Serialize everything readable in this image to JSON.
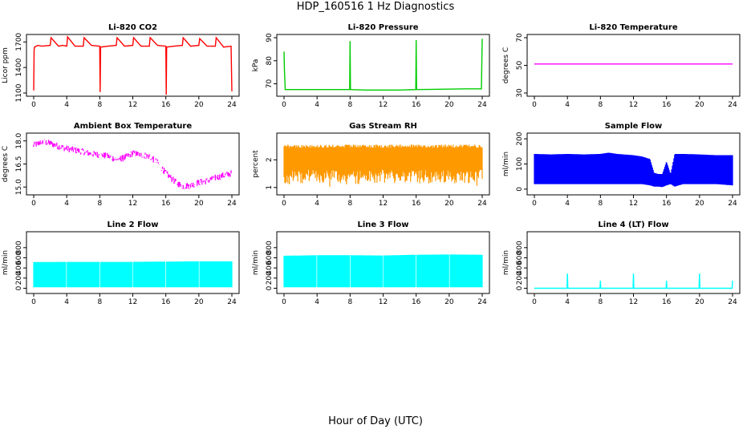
{
  "figure": {
    "title": "HDP_160516  1 Hz Diagnostics",
    "xlabel": "Hour of Day (UTC)"
  },
  "chart_data": [
    {
      "type": "line",
      "title": "Li-820 CO2",
      "ylabel": "Licor ppm",
      "color": "#ff0000",
      "xlim": [
        0,
        24
      ],
      "ylim": [
        1100,
        1750
      ],
      "xticks": [
        0,
        4,
        8,
        12,
        16,
        20,
        24
      ],
      "yticks": [
        1100,
        1400,
        1700
      ],
      "x": [
        0,
        0.05,
        0.1,
        0.5,
        1,
        2,
        2.1,
        3,
        3.5,
        4,
        4.1,
        5,
        6,
        6.1,
        7,
        8,
        8.05,
        8.1,
        9,
        10,
        10.1,
        11,
        12,
        12.1,
        13,
        14,
        14.1,
        15,
        16,
        16.05,
        16.1,
        17,
        18,
        18.1,
        19,
        20,
        20.1,
        21,
        22,
        22.1,
        23,
        23.9,
        24
      ],
      "y": [
        1130,
        1600,
        1640,
        1660,
        1650,
        1660,
        1750,
        1650,
        1660,
        1650,
        1760,
        1650,
        1650,
        1750,
        1660,
        1650,
        1110,
        1640,
        1650,
        1660,
        1750,
        1650,
        1660,
        1750,
        1650,
        1650,
        1750,
        1660,
        1650,
        1080,
        1640,
        1650,
        1660,
        1750,
        1650,
        1660,
        1740,
        1650,
        1650,
        1750,
        1640,
        1650,
        1120
      ]
    },
    {
      "type": "line",
      "title": "Li-820 Pressure",
      "ylabel": "kPa",
      "color": "#00cc00",
      "xlim": [
        0,
        24
      ],
      "ylim": [
        66,
        90
      ],
      "xticks": [
        0,
        4,
        8,
        12,
        16,
        20,
        24
      ],
      "yticks": [
        70,
        80,
        90
      ],
      "x": [
        0,
        0.05,
        0.15,
        1,
        4,
        7.95,
        8,
        8.05,
        10,
        14,
        15.95,
        16,
        16.05,
        18,
        22,
        23.9,
        24
      ],
      "y": [
        84,
        76,
        67.5,
        67.5,
        67.5,
        67.5,
        88.5,
        67.5,
        67.3,
        67.3,
        67.5,
        89,
        67.5,
        67.6,
        67.8,
        67.8,
        89.5
      ]
    },
    {
      "type": "line",
      "title": "Li-820 Temperature",
      "ylabel": "degrees C",
      "color": "#ff00ff",
      "xlim": [
        0,
        24
      ],
      "ylim": [
        30,
        70
      ],
      "xticks": [
        0,
        4,
        8,
        12,
        16,
        20,
        24
      ],
      "yticks": [
        30,
        50,
        70
      ],
      "x": [
        0,
        24
      ],
      "y": [
        51,
        51
      ]
    },
    {
      "type": "line",
      "title": "Ambient Box Temperature",
      "ylabel": "degrees C",
      "color": "#ff00ff",
      "xlim": [
        0,
        24
      ],
      "ylim": [
        14.7,
        18.3
      ],
      "xticks": [
        0,
        4,
        8,
        12,
        16,
        20,
        24
      ],
      "yticks": [
        15.0,
        16.5,
        18.0
      ],
      "x": [
        0,
        1,
        2,
        3,
        4,
        5,
        6,
        7,
        8,
        9,
        10,
        11,
        12,
        13,
        14,
        15,
        16,
        17,
        18,
        19,
        20,
        21,
        22,
        23,
        24
      ],
      "y": [
        17.7,
        17.95,
        17.85,
        17.65,
        17.5,
        17.4,
        17.3,
        17.15,
        17.1,
        17.0,
        16.8,
        16.9,
        17.2,
        17.1,
        17.0,
        16.6,
        15.9,
        15.4,
        15.05,
        15.1,
        15.3,
        15.4,
        15.6,
        15.75,
        15.9
      ],
      "band": 0.22
    },
    {
      "type": "line",
      "title": "Gas Stream RH",
      "ylabel": "percent",
      "color": "#ff9900",
      "xlim": [
        0,
        24
      ],
      "ylim": [
        0.85,
        2.85
      ],
      "xticks": [
        0,
        4,
        8,
        12,
        16,
        20,
        24
      ],
      "yticks": [
        1.0,
        2.0
      ],
      "x": [
        0,
        24
      ],
      "y_low": [
        1.15,
        1.15
      ],
      "y_high": [
        2.55,
        2.55
      ],
      "band": 1.4
    },
    {
      "type": "line",
      "title": "Sample Flow",
      "ylabel": "ml/min",
      "color": "#0000ff",
      "xlim": [
        0,
        24
      ],
      "ylim": [
        -10,
        210
      ],
      "xticks": [
        0,
        4,
        8,
        12,
        16,
        20,
        24
      ],
      "yticks": [
        0,
        100,
        200
      ],
      "x": [
        0,
        2,
        4,
        6,
        8,
        9,
        10,
        12,
        13,
        14,
        14.5,
        15,
        15.5,
        16,
        16.5,
        17,
        18,
        20,
        22,
        24
      ],
      "y_low": [
        20,
        20,
        20,
        20,
        20,
        20,
        20,
        20,
        20,
        15,
        10,
        10,
        8,
        15,
        20,
        10,
        20,
        20,
        20,
        15
      ],
      "y_high": [
        140,
        138,
        140,
        138,
        140,
        145,
        140,
        135,
        130,
        120,
        65,
        60,
        60,
        110,
        60,
        140,
        140,
        138,
        135,
        135
      ]
    },
    {
      "type": "line",
      "title": "Line 2 Flow",
      "ylabel": "ml/min",
      "color": "#00ffff",
      "xlim": [
        0,
        24
      ],
      "ylim": [
        -40,
        1050
      ],
      "xticks": [
        0,
        4,
        8,
        12,
        16,
        20,
        24
      ],
      "yticks": [
        0,
        200,
        400,
        600,
        800
      ],
      "x": [
        0,
        4,
        8,
        12,
        16,
        20,
        24
      ],
      "y_low": [
        20,
        20,
        20,
        20,
        20,
        20,
        20
      ],
      "y_high": [
        515,
        520,
        520,
        520,
        525,
        530,
        530
      ],
      "gaps": [
        4,
        8,
        12,
        16,
        20
      ]
    },
    {
      "type": "line",
      "title": "Line 3 Flow",
      "ylabel": "ml/min",
      "color": "#00ffff",
      "xlim": [
        0,
        24
      ],
      "ylim": [
        -40,
        1050
      ],
      "xticks": [
        0,
        4,
        8,
        12,
        16,
        20,
        24
      ],
      "yticks": [
        0,
        200,
        400,
        600,
        800
      ],
      "x": [
        0,
        4,
        8,
        12,
        16,
        20,
        24
      ],
      "y_low": [
        20,
        20,
        20,
        20,
        20,
        20,
        20
      ],
      "y_high": [
        640,
        650,
        650,
        645,
        660,
        665,
        660
      ],
      "gaps": [
        4,
        8,
        12,
        16,
        20
      ]
    },
    {
      "type": "line",
      "title": "Line 4 (LT) Flow",
      "ylabel": "ml/min",
      "color": "#00ffff",
      "xlim": [
        0,
        24
      ],
      "ylim": [
        -40,
        1050
      ],
      "xticks": [
        0,
        4,
        8,
        12,
        16,
        20,
        24
      ],
      "yticks": [
        0,
        200,
        400,
        600,
        800
      ],
      "x": [
        0,
        3.95,
        4,
        4.05,
        7.95,
        8,
        8.05,
        11.95,
        12,
        12.05,
        15.95,
        16,
        16.05,
        19.95,
        20,
        20.05,
        23.95,
        24
      ],
      "y": [
        0,
        0,
        290,
        0,
        0,
        150,
        0,
        0,
        290,
        0,
        0,
        150,
        0,
        0,
        290,
        0,
        0,
        150
      ]
    }
  ]
}
